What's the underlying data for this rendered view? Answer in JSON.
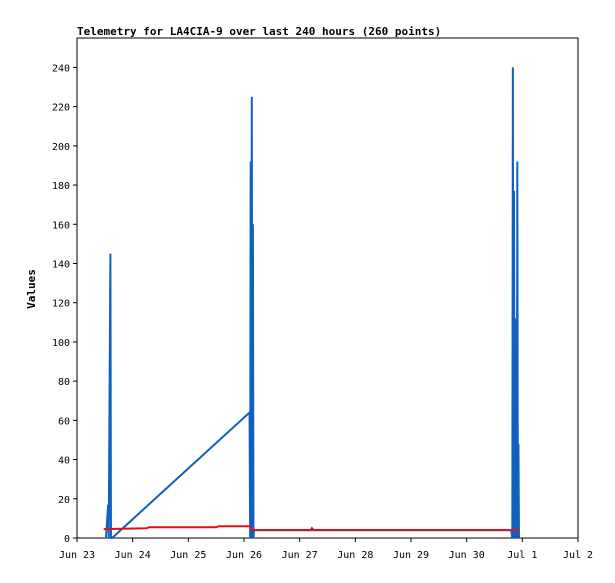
{
  "chart_data": {
    "type": "line",
    "title": "Telemetry for LA4CIA-9 over last 240 hours (260 points)",
    "xlabel": "",
    "ylabel": "Values",
    "x_ticks": [
      "Jun 23",
      "Jun 24",
      "Jun 25",
      "Jun 26",
      "Jun 27",
      "Jun 28",
      "Jun 29",
      "Jun 30",
      "Jul 1",
      "Jul 2"
    ],
    "y_ticks": [
      "0",
      "20",
      "40",
      "60",
      "80",
      "100",
      "120",
      "140",
      "160",
      "180",
      "200",
      "220",
      "240"
    ],
    "xlim": [
      0,
      9
    ],
    "ylim": [
      0,
      255
    ],
    "grid": false,
    "legend": "none",
    "series": [
      {
        "color": "#1060c0",
        "points": [
          [
            0.52,
            0
          ],
          [
            0.56,
            17
          ],
          [
            0.57,
            0
          ],
          [
            0.6,
            145
          ],
          [
            0.61,
            0
          ],
          [
            0.63,
            0
          ],
          [
            3.1,
            64
          ],
          [
            3.11,
            0
          ],
          [
            3.12,
            192
          ],
          [
            3.13,
            0
          ],
          [
            3.14,
            225
          ],
          [
            3.15,
            0
          ],
          [
            3.16,
            160
          ],
          [
            3.17,
            0
          ],
          [
            3.18,
            4
          ],
          [
            7.8,
            4
          ],
          [
            7.82,
            0
          ],
          [
            7.83,
            240
          ],
          [
            7.84,
            0
          ],
          [
            7.85,
            177
          ],
          [
            7.86,
            0
          ],
          [
            7.87,
            112
          ],
          [
            7.88,
            0
          ],
          [
            7.89,
            80
          ],
          [
            7.9,
            0
          ],
          [
            7.91,
            192
          ],
          [
            7.92,
            0
          ],
          [
            7.93,
            48
          ],
          [
            7.94,
            0
          ]
        ]
      },
      {
        "color": "#e01010",
        "points": [
          [
            0.48,
            4.5
          ],
          [
            1.25,
            5
          ],
          [
            1.3,
            5.5
          ],
          [
            2.5,
            5.5
          ],
          [
            2.55,
            6
          ],
          [
            3.1,
            6
          ],
          [
            3.15,
            4
          ],
          [
            4.2,
            4
          ],
          [
            4.22,
            5
          ],
          [
            4.25,
            4
          ],
          [
            7.94,
            4
          ]
        ]
      }
    ]
  }
}
